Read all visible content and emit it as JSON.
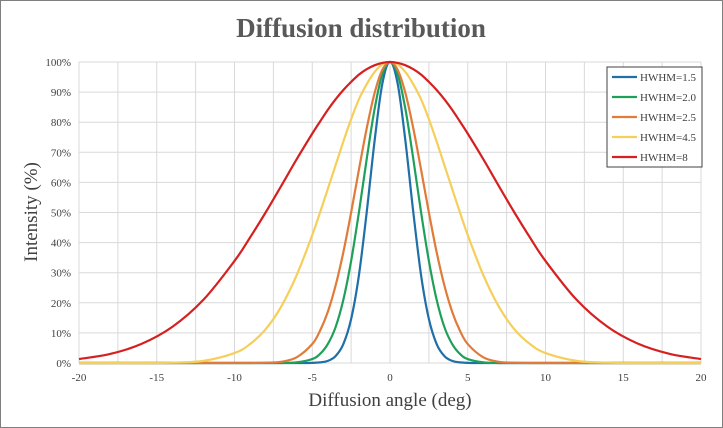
{
  "chart_data": {
    "type": "line",
    "title": "Diffusion distribution",
    "xlabel": "Diffusion angle (deg)",
    "ylabel": "Intensity (%)",
    "xlim": [
      -20,
      20
    ],
    "ylim": [
      0,
      100
    ],
    "x_ticks": [
      "-20",
      "-15",
      "-10",
      "-5",
      "0",
      "5",
      "10",
      "15",
      "20"
    ],
    "y_ticks": [
      "0%",
      "10%",
      "20%",
      "30%",
      "40%",
      "50%",
      "60%",
      "70%",
      "80%",
      "90%",
      "100%"
    ],
    "grid": true,
    "legend_position": "top-right",
    "x": [
      -20,
      -18,
      -16,
      -14,
      -12,
      -10,
      -9,
      -8,
      -7,
      -6,
      -5,
      -4.5,
      -4,
      -3.5,
      -3,
      -2.5,
      -2,
      -1.5,
      -1,
      -0.5,
      0,
      0.5,
      1,
      1.5,
      2,
      2.5,
      3,
      3.5,
      4,
      4.5,
      5,
      6,
      7,
      8,
      9,
      10,
      12,
      14,
      16,
      18,
      20
    ],
    "series": [
      {
        "name": "HWHM=1.5",
        "color": "#1f6fa8",
        "values": [
          0,
          0,
          0,
          0,
          0,
          0,
          0,
          0,
          0,
          0,
          0.05,
          0.2,
          0.7,
          2.3,
          6.3,
          14.6,
          29.1,
          50.0,
          73.4,
          92.6,
          100,
          92.6,
          73.4,
          50.0,
          29.1,
          14.6,
          6.3,
          2.3,
          0.7,
          0.2,
          0.05,
          0,
          0,
          0,
          0,
          0,
          0,
          0,
          0,
          0,
          0
        ]
      },
      {
        "name": "HWHM=2.0",
        "color": "#1fa05a",
        "values": [
          0,
          0,
          0,
          0,
          0,
          0,
          0,
          0,
          0,
          0.2,
          1.3,
          3.0,
          6.3,
          11.9,
          21.0,
          33.9,
          50.0,
          67.7,
          84.1,
          95.8,
          100,
          95.8,
          84.1,
          67.7,
          50.0,
          33.9,
          21.0,
          11.9,
          6.3,
          3.0,
          1.3,
          0.2,
          0,
          0,
          0,
          0,
          0,
          0,
          0,
          0,
          0
        ]
      },
      {
        "name": "HWHM=2.5",
        "color": "#e07b39",
        "values": [
          0,
          0,
          0,
          0,
          0,
          0,
          0,
          0.1,
          0.4,
          1.9,
          6.3,
          10.7,
          17.0,
          25.7,
          36.8,
          50.0,
          64.2,
          77.9,
          89.5,
          97.3,
          100,
          97.3,
          89.5,
          77.9,
          64.2,
          50.0,
          36.8,
          25.7,
          17.0,
          10.7,
          6.3,
          1.9,
          0.4,
          0.1,
          0,
          0,
          0,
          0,
          0,
          0,
          0
        ]
      },
      {
        "name": "HWHM=4.5",
        "color": "#f5cf5a",
        "values": [
          0,
          0,
          0,
          0.1,
          0.7,
          3.3,
          6.3,
          11.2,
          18.7,
          29.2,
          42.5,
          50.0,
          57.8,
          65.7,
          73.6,
          81.0,
          87.6,
          92.6,
          96.6,
          99.2,
          100,
          99.2,
          96.6,
          92.6,
          87.6,
          81.0,
          73.6,
          65.7,
          57.8,
          50.0,
          42.5,
          29.2,
          18.7,
          11.2,
          6.3,
          3.3,
          0.7,
          0.1,
          0,
          0,
          0
        ]
      },
      {
        "name": "HWHM=8",
        "color": "#d62020",
        "values": [
          1.3,
          3.0,
          6.3,
          12.0,
          21.0,
          33.9,
          41.7,
          50.0,
          58.8,
          67.7,
          76.2,
          80.2,
          84.1,
          87.6,
          90.7,
          93.4,
          95.8,
          97.6,
          98.9,
          99.7,
          100,
          99.7,
          98.9,
          97.6,
          95.8,
          93.4,
          90.7,
          87.6,
          84.1,
          80.2,
          76.2,
          67.7,
          58.8,
          50.0,
          41.7,
          33.9,
          21.0,
          12.0,
          6.3,
          3.0,
          1.3
        ]
      }
    ]
  }
}
